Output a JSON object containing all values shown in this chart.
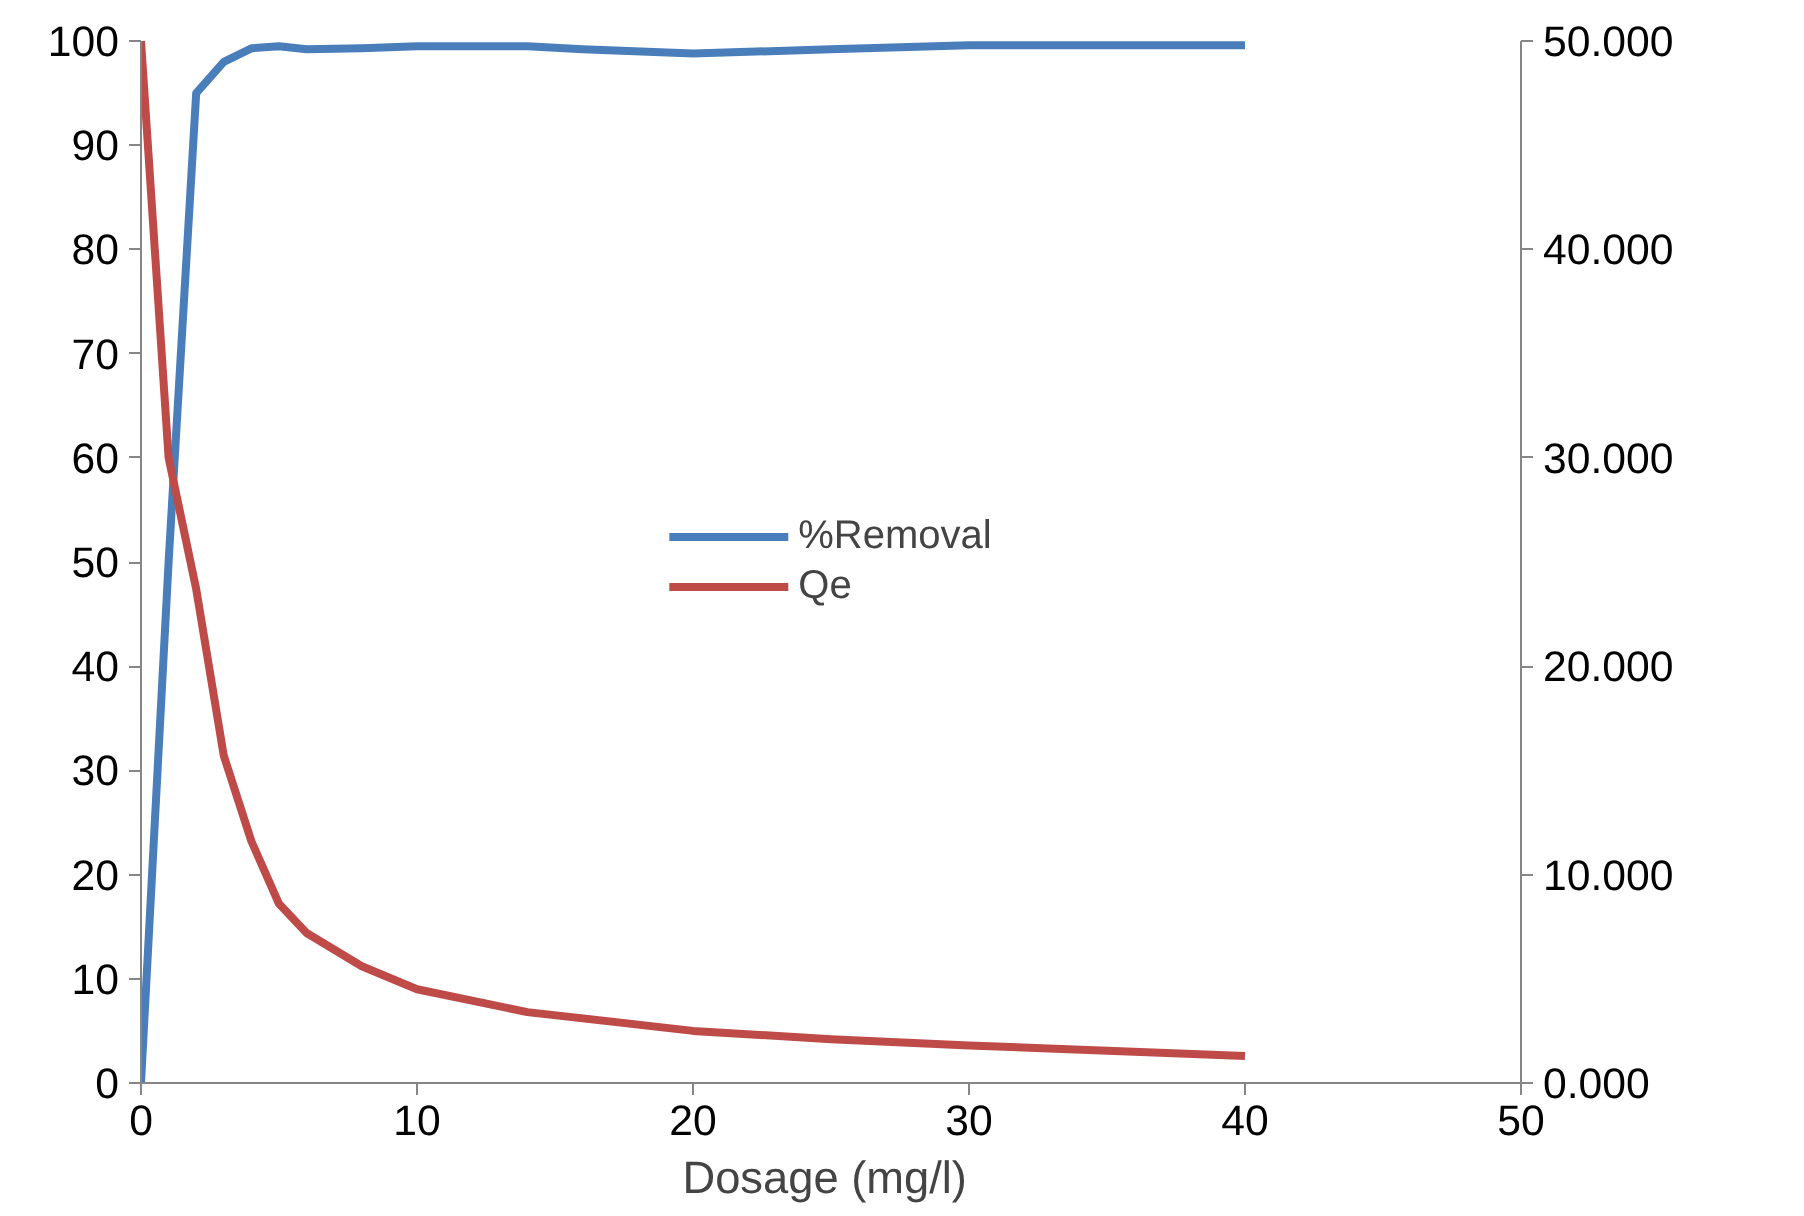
{
  "chart_data": {
    "type": "line",
    "xlabel": "Dosage  (mg/l)",
    "xlim": [
      0,
      50
    ],
    "xticks": [
      0,
      10,
      20,
      30,
      40,
      50
    ],
    "ylim": [
      0,
      100
    ],
    "yticks": [
      0,
      10,
      20,
      30,
      40,
      50,
      60,
      70,
      80,
      90,
      100
    ],
    "y2lim": [
      0,
      50
    ],
    "y2ticks": [
      {
        "value": 0,
        "label": "0.000"
      },
      {
        "value": 10,
        "label": "10.000"
      },
      {
        "value": 20,
        "label": "20.000"
      },
      {
        "value": 30,
        "label": "30.000"
      },
      {
        "value": 40,
        "label": "40.000"
      },
      {
        "value": 50,
        "label": "50.000"
      }
    ],
    "grid": false,
    "legend": "center",
    "marker": "none",
    "line_style": "solid",
    "series": [
      {
        "name": "%Removal",
        "color": "#4a7ebb",
        "x": [
          0,
          1,
          2,
          3,
          4,
          5,
          6,
          8,
          10,
          14,
          16,
          20,
          25,
          30,
          40
        ],
        "values": [
          0,
          50,
          95,
          98,
          99.3,
          99.5,
          99.2,
          99.3,
          99.5,
          99.5,
          99.2,
          98.8,
          99.2,
          99.6,
          99.6
        ]
      },
      {
        "name": "Qe",
        "color": "#be4b48",
        "axis": "y2",
        "x": [
          0,
          0.5,
          1,
          2,
          3,
          4,
          5,
          6,
          8,
          10,
          14,
          20,
          25,
          30,
          40
        ],
        "values": [
          50,
          40,
          30,
          23.7,
          15.7,
          11.6,
          8.6,
          7.2,
          5.6,
          4.5,
          3.4,
          2.5,
          2.1,
          1.8,
          1.3
        ]
      }
    ]
  }
}
